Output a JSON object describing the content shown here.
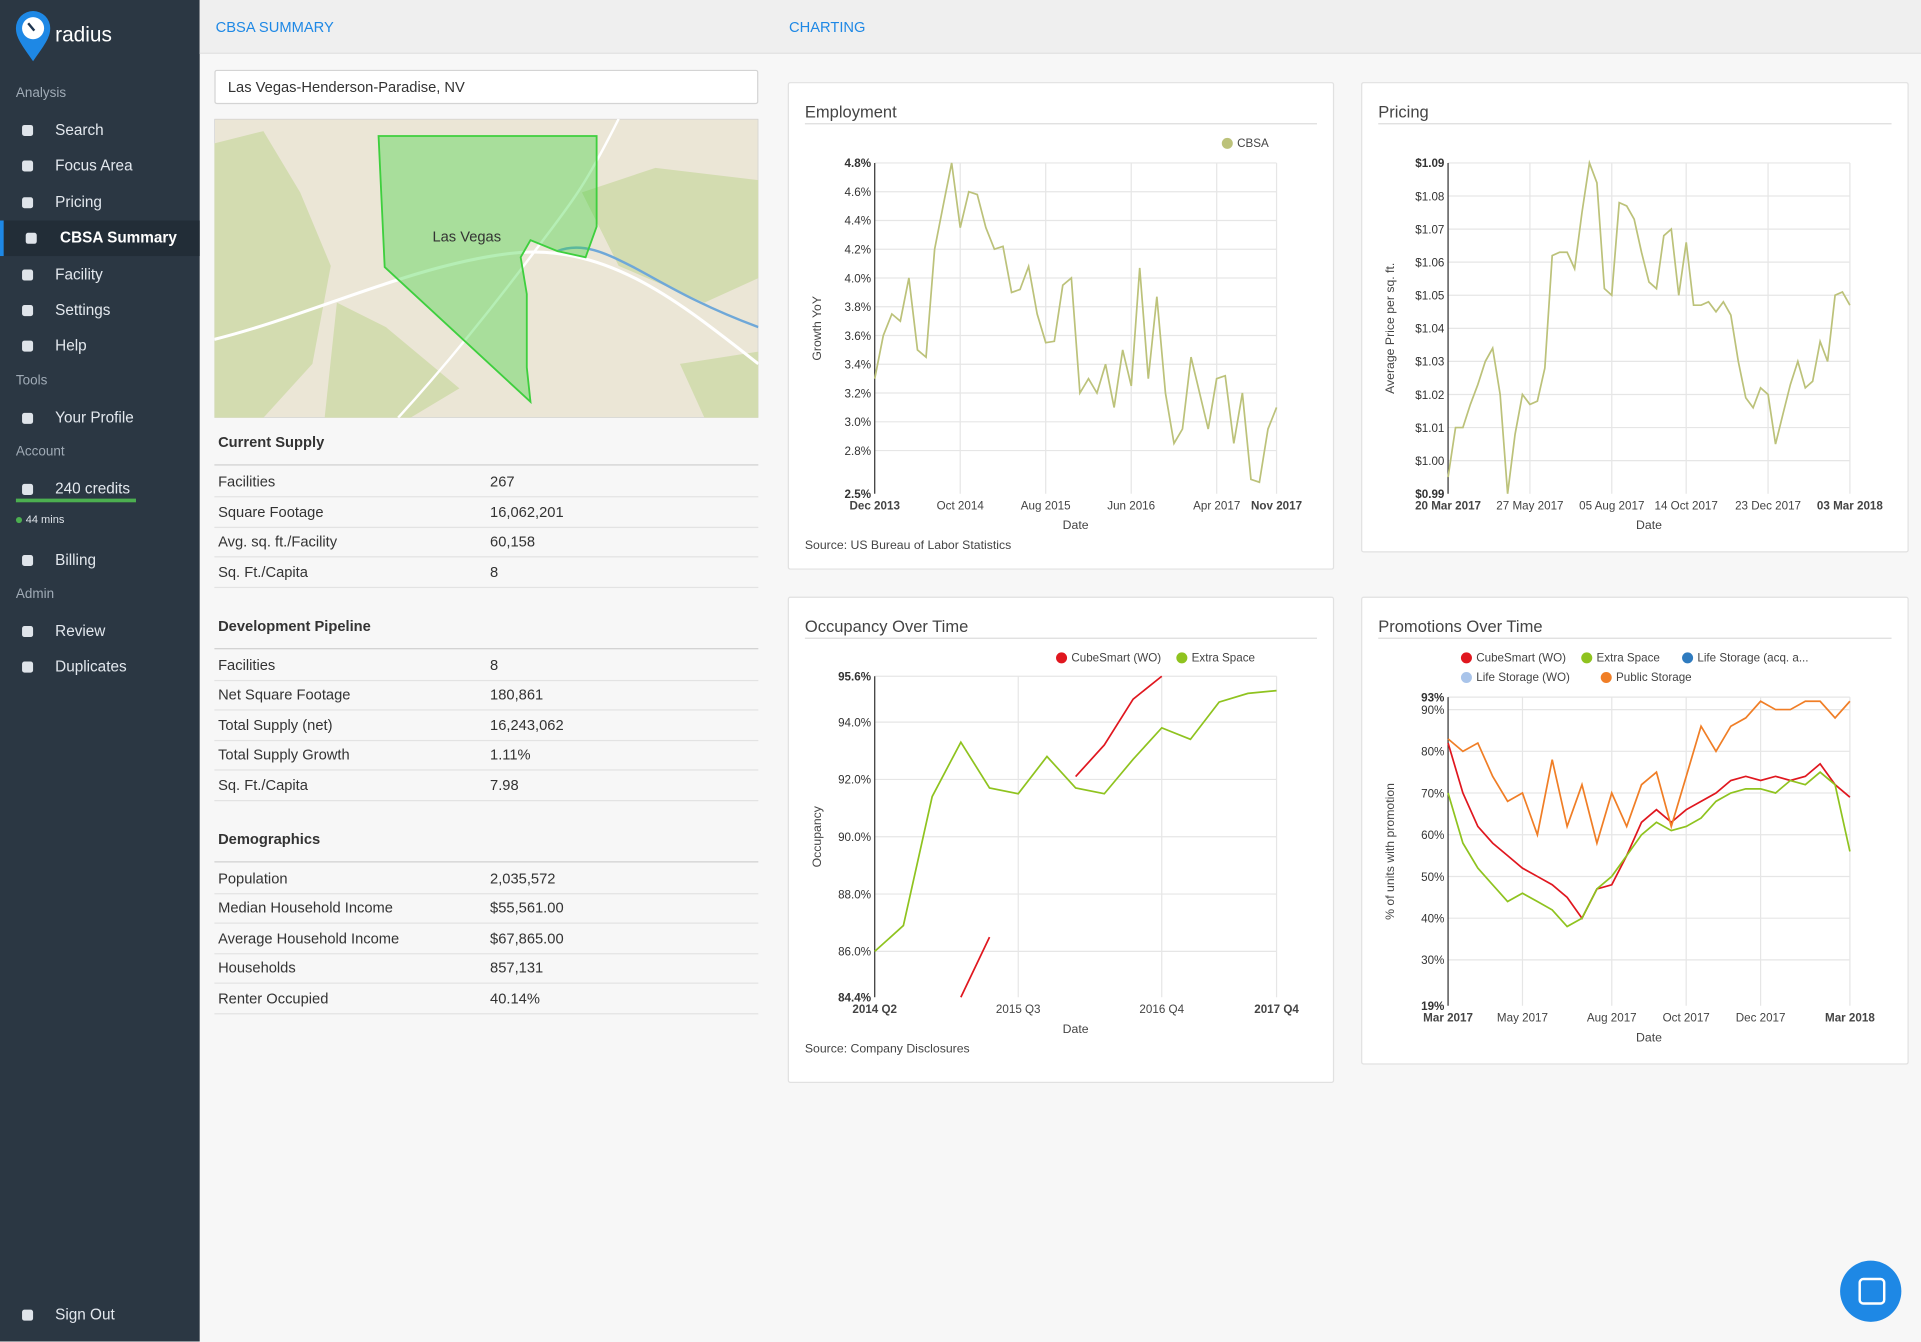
{
  "sidebar": {
    "brand": "radius",
    "sections": [
      {
        "heading": "Analysis",
        "items": [
          "Search",
          "Focus Area",
          "Pricing",
          "CBSA Summary",
          "Facility",
          "Settings",
          "Help"
        ]
      },
      {
        "heading": "Tools",
        "items": [
          "Your Profile"
        ]
      },
      {
        "heading": "Account",
        "items": [
          "240 credits",
          "Billing"
        ]
      },
      {
        "heading": "Admin",
        "items": [
          "Review",
          "Duplicates"
        ]
      }
    ],
    "active": "CBSA Summary",
    "timer": "44 mins",
    "sign_out": "Sign Out"
  },
  "tabs": [
    "CBSA SUMMARY",
    "CHARTING"
  ],
  "search": "Las Vegas-Henderson-Paradise, NV",
  "map_label": "Las Vegas",
  "tables": [
    {
      "heading": "Current Supply",
      "rows": [
        [
          "Facilities",
          "267"
        ],
        [
          "Square Footage",
          "16,062,201"
        ],
        [
          "Avg. sq. ft./Facility",
          "60,158"
        ],
        [
          "Sq. Ft./Capita",
          "8"
        ]
      ]
    },
    {
      "heading": "Development Pipeline",
      "rows": [
        [
          "Facilities",
          "8"
        ],
        [
          "Net Square Footage",
          "180,861"
        ],
        [
          "Total Supply (net)",
          "16,243,062"
        ],
        [
          "Total Supply Growth",
          "1.11%"
        ],
        [
          "Sq. Ft./Capita",
          "7.98"
        ]
      ]
    },
    {
      "heading": "Demographics",
      "rows": [
        [
          "Population",
          "2,035,572"
        ],
        [
          "Median Household Income",
          "$55,561.00"
        ],
        [
          "Average Household Income",
          "$67,865.00"
        ],
        [
          "Households",
          "857,131"
        ],
        [
          "Renter Occupied",
          "40.14%"
        ]
      ]
    }
  ],
  "chart_data": [
    {
      "type": "line",
      "title": "Employment",
      "xlabel": "Date",
      "ylabel": "Growth YoY",
      "source": "Source: US Bureau of Labor Statistics",
      "categories": [
        "Dec 2013",
        null,
        null,
        null,
        null,
        null,
        null,
        null,
        null,
        null,
        "Oct 2014",
        null,
        null,
        null,
        null,
        null,
        null,
        null,
        null,
        null,
        "Aug 2015",
        null,
        null,
        null,
        null,
        null,
        null,
        null,
        null,
        null,
        "Jun 2016",
        null,
        null,
        null,
        null,
        null,
        null,
        null,
        null,
        null,
        "Apr 2017",
        null,
        null,
        null,
        null,
        null,
        null,
        "Nov 2017"
      ],
      "series": [
        {
          "name": "CBSA",
          "color": "#bcc27a",
          "values": [
            3.3,
            3.6,
            3.75,
            3.7,
            4.0,
            3.5,
            3.45,
            4.2,
            4.5,
            4.8,
            4.35,
            4.6,
            4.58,
            4.35,
            4.2,
            4.22,
            3.9,
            3.92,
            4.08,
            3.75,
            3.55,
            3.56,
            3.95,
            4.0,
            3.2,
            3.3,
            3.2,
            3.4,
            3.1,
            3.5,
            3.25,
            4.07,
            3.3,
            3.87,
            3.2,
            2.85,
            2.95,
            3.45,
            3.2,
            2.95,
            3.3,
            3.32,
            2.85,
            3.2,
            2.6,
            2.58,
            2.95,
            3.1
          ]
        }
      ],
      "ylim": [
        2.5,
        4.8
      ],
      "yticks": [
        {
          "value": 2.5,
          "label": "2.5%"
        },
        {
          "value": 2.8,
          "label": "2.8%"
        },
        {
          "value": 3.0,
          "label": "3.0%"
        },
        {
          "value": 3.2,
          "label": "3.2%"
        },
        {
          "value": 3.4,
          "label": "3.4%"
        },
        {
          "value": 3.6,
          "label": "3.6%"
        },
        {
          "value": 3.8,
          "label": "3.8%"
        },
        {
          "value": 4.0,
          "label": "4.0%"
        },
        {
          "value": 4.2,
          "label": "4.2%"
        },
        {
          "value": 4.4,
          "label": "4.4%"
        },
        {
          "value": 4.6,
          "label": "4.6%"
        },
        {
          "value": 4.8,
          "label": "4.8%"
        }
      ],
      "grid": true,
      "legend": "top-right"
    },
    {
      "type": "line",
      "title": "Pricing",
      "xlabel": "Date",
      "ylabel": "Average Price per sq. ft.",
      "categories": [
        "20 Mar 2017",
        null,
        null,
        null,
        null,
        null,
        null,
        null,
        null,
        null,
        null,
        "27 May 2017",
        null,
        null,
        null,
        null,
        null,
        null,
        null,
        null,
        null,
        null,
        "05 Aug 2017",
        null,
        null,
        null,
        null,
        null,
        null,
        null,
        null,
        null,
        "14 Oct 2017",
        null,
        null,
        null,
        null,
        null,
        null,
        null,
        null,
        null,
        null,
        "23 Dec 2017",
        null,
        null,
        null,
        null,
        null,
        null,
        null,
        null,
        null,
        null,
        "03 Mar 2018"
      ],
      "series": [
        {
          "color": "#bcc27a",
          "values": [
            0.995,
            1.01,
            1.01,
            1.017,
            1.023,
            1.03,
            1.034,
            1.02,
            0.99,
            1.008,
            1.02,
            1.017,
            1.018,
            1.028,
            1.062,
            1.063,
            1.063,
            1.058,
            1.075,
            1.09,
            1.084,
            1.052,
            1.05,
            1.078,
            1.077,
            1.073,
            1.063,
            1.054,
            1.052,
            1.068,
            1.07,
            1.05,
            1.066,
            1.047,
            1.047,
            1.048,
            1.045,
            1.048,
            1.044,
            1.03,
            1.019,
            1.016,
            1.022,
            1.02,
            1.005,
            1.014,
            1.023,
            1.03,
            1.022,
            1.024,
            1.036,
            1.03,
            1.05,
            1.051,
            1.047
          ]
        }
      ],
      "ylim": [
        0.99,
        1.09
      ],
      "yticks": [
        {
          "value": 0.99,
          "label": "$0.99"
        },
        {
          "value": 1.0,
          "label": "$1.00"
        },
        {
          "value": 1.01,
          "label": "$1.01"
        },
        {
          "value": 1.02,
          "label": "$1.02"
        },
        {
          "value": 1.03,
          "label": "$1.03"
        },
        {
          "value": 1.04,
          "label": "$1.04"
        },
        {
          "value": 1.05,
          "label": "$1.05"
        },
        {
          "value": 1.06,
          "label": "$1.06"
        },
        {
          "value": 1.07,
          "label": "$1.07"
        },
        {
          "value": 1.08,
          "label": "$1.08"
        },
        {
          "value": 1.09,
          "label": "$1.09"
        }
      ],
      "grid": true
    },
    {
      "type": "line",
      "title": "Occupancy Over Time",
      "xlabel": "Date",
      "ylabel": "Occupancy",
      "source": "Source: Company Disclosures",
      "categories": [
        "2014 Q2",
        null,
        null,
        null,
        null,
        "2015 Q3",
        null,
        null,
        null,
        null,
        "2016 Q4",
        null,
        null,
        null,
        "2017 Q4"
      ],
      "series": [
        {
          "name": "CubeSmart (WO)",
          "color": "#e0171f",
          "values": [
            null,
            null,
            null,
            84.4,
            86.5,
            null,
            null,
            92.1,
            93.2,
            94.8,
            95.6,
            null,
            null,
            null,
            null
          ]
        },
        {
          "name": "Extra Space",
          "color": "#8fc31f",
          "values": [
            86.0,
            86.9,
            91.4,
            93.3,
            91.7,
            91.5,
            92.8,
            91.7,
            91.5,
            92.7,
            93.8,
            93.4,
            94.7,
            95.0,
            95.1
          ]
        }
      ],
      "ylim": [
        84.4,
        95.6
      ],
      "yticks": [
        {
          "value": 84.4,
          "label": "84.4%"
        },
        {
          "value": 86,
          "label": "86.0%"
        },
        {
          "value": 88,
          "label": "88.0%"
        },
        {
          "value": 90,
          "label": "90.0%"
        },
        {
          "value": 92,
          "label": "92.0%"
        },
        {
          "value": 94,
          "label": "94.0%"
        },
        {
          "value": 95.6,
          "label": "95.6%"
        }
      ],
      "grid": true,
      "legend": "top-right"
    },
    {
      "type": "line",
      "title": "Promotions Over Time",
      "xlabel": "Date",
      "ylabel": "% of units with promotion",
      "categories": [
        "Mar 2017",
        null,
        null,
        null,
        null,
        "May 2017",
        null,
        null,
        null,
        null,
        null,
        "Aug 2017",
        null,
        null,
        null,
        null,
        "Oct 2017",
        null,
        null,
        null,
        null,
        "Dec 2017",
        null,
        null,
        null,
        null,
        null,
        "Mar 2018"
      ],
      "series": [
        {
          "name": "CubeSmart (WO)",
          "color": "#e0171f",
          "values": [
            82,
            70,
            62,
            58,
            55,
            52,
            50,
            48,
            45,
            40,
            47,
            48,
            55,
            63,
            66,
            63,
            66,
            68,
            70,
            73,
            74,
            73,
            74,
            73,
            74,
            77,
            72,
            69
          ]
        },
        {
          "name": "Extra Space",
          "color": "#8fc31f",
          "values": [
            70,
            58,
            52,
            48,
            44,
            46,
            44,
            42,
            38,
            40,
            47,
            50,
            55,
            60,
            63,
            61,
            62,
            64,
            68,
            70,
            71,
            71,
            70,
            73,
            72,
            75,
            72,
            56
          ]
        },
        {
          "name": "Life Storage (acq. a...",
          "color": "#2f7bbf",
          "values": [
            null,
            null,
            null,
            null,
            null,
            null,
            null,
            null,
            null,
            null,
            null,
            null,
            null,
            null,
            null,
            null,
            null,
            null,
            null,
            null,
            null,
            null,
            null,
            null,
            null,
            null,
            null,
            null
          ]
        },
        {
          "name": "Life Storage (WO)",
          "color": "#a9c4ea",
          "values": [
            null,
            null,
            null,
            null,
            null,
            null,
            null,
            null,
            null,
            null,
            null,
            null,
            null,
            null,
            null,
            null,
            null,
            null,
            null,
            null,
            null,
            null,
            null,
            null,
            null,
            null,
            null,
            null
          ]
        },
        {
          "name": "Public Storage",
          "color": "#f07e26",
          "values": [
            83,
            80,
            82,
            74,
            68,
            70,
            60,
            78,
            62,
            72,
            58,
            70,
            62,
            72,
            75,
            62,
            74,
            86,
            80,
            86,
            88,
            92,
            90,
            90,
            92,
            92,
            88,
            92
          ]
        }
      ],
      "ylim": [
        19,
        93
      ],
      "yticks": [
        {
          "value": 19,
          "label": "19%"
        },
        {
          "value": 30,
          "label": "30%"
        },
        {
          "value": 40,
          "label": "40%"
        },
        {
          "value": 50,
          "label": "50%"
        },
        {
          "value": 60,
          "label": "60%"
        },
        {
          "value": 70,
          "label": "70%"
        },
        {
          "value": 80,
          "label": "80%"
        },
        {
          "value": 90,
          "label": "90%"
        },
        {
          "value": 93,
          "label": "93%"
        }
      ],
      "grid": true,
      "legend": "top-left"
    }
  ]
}
